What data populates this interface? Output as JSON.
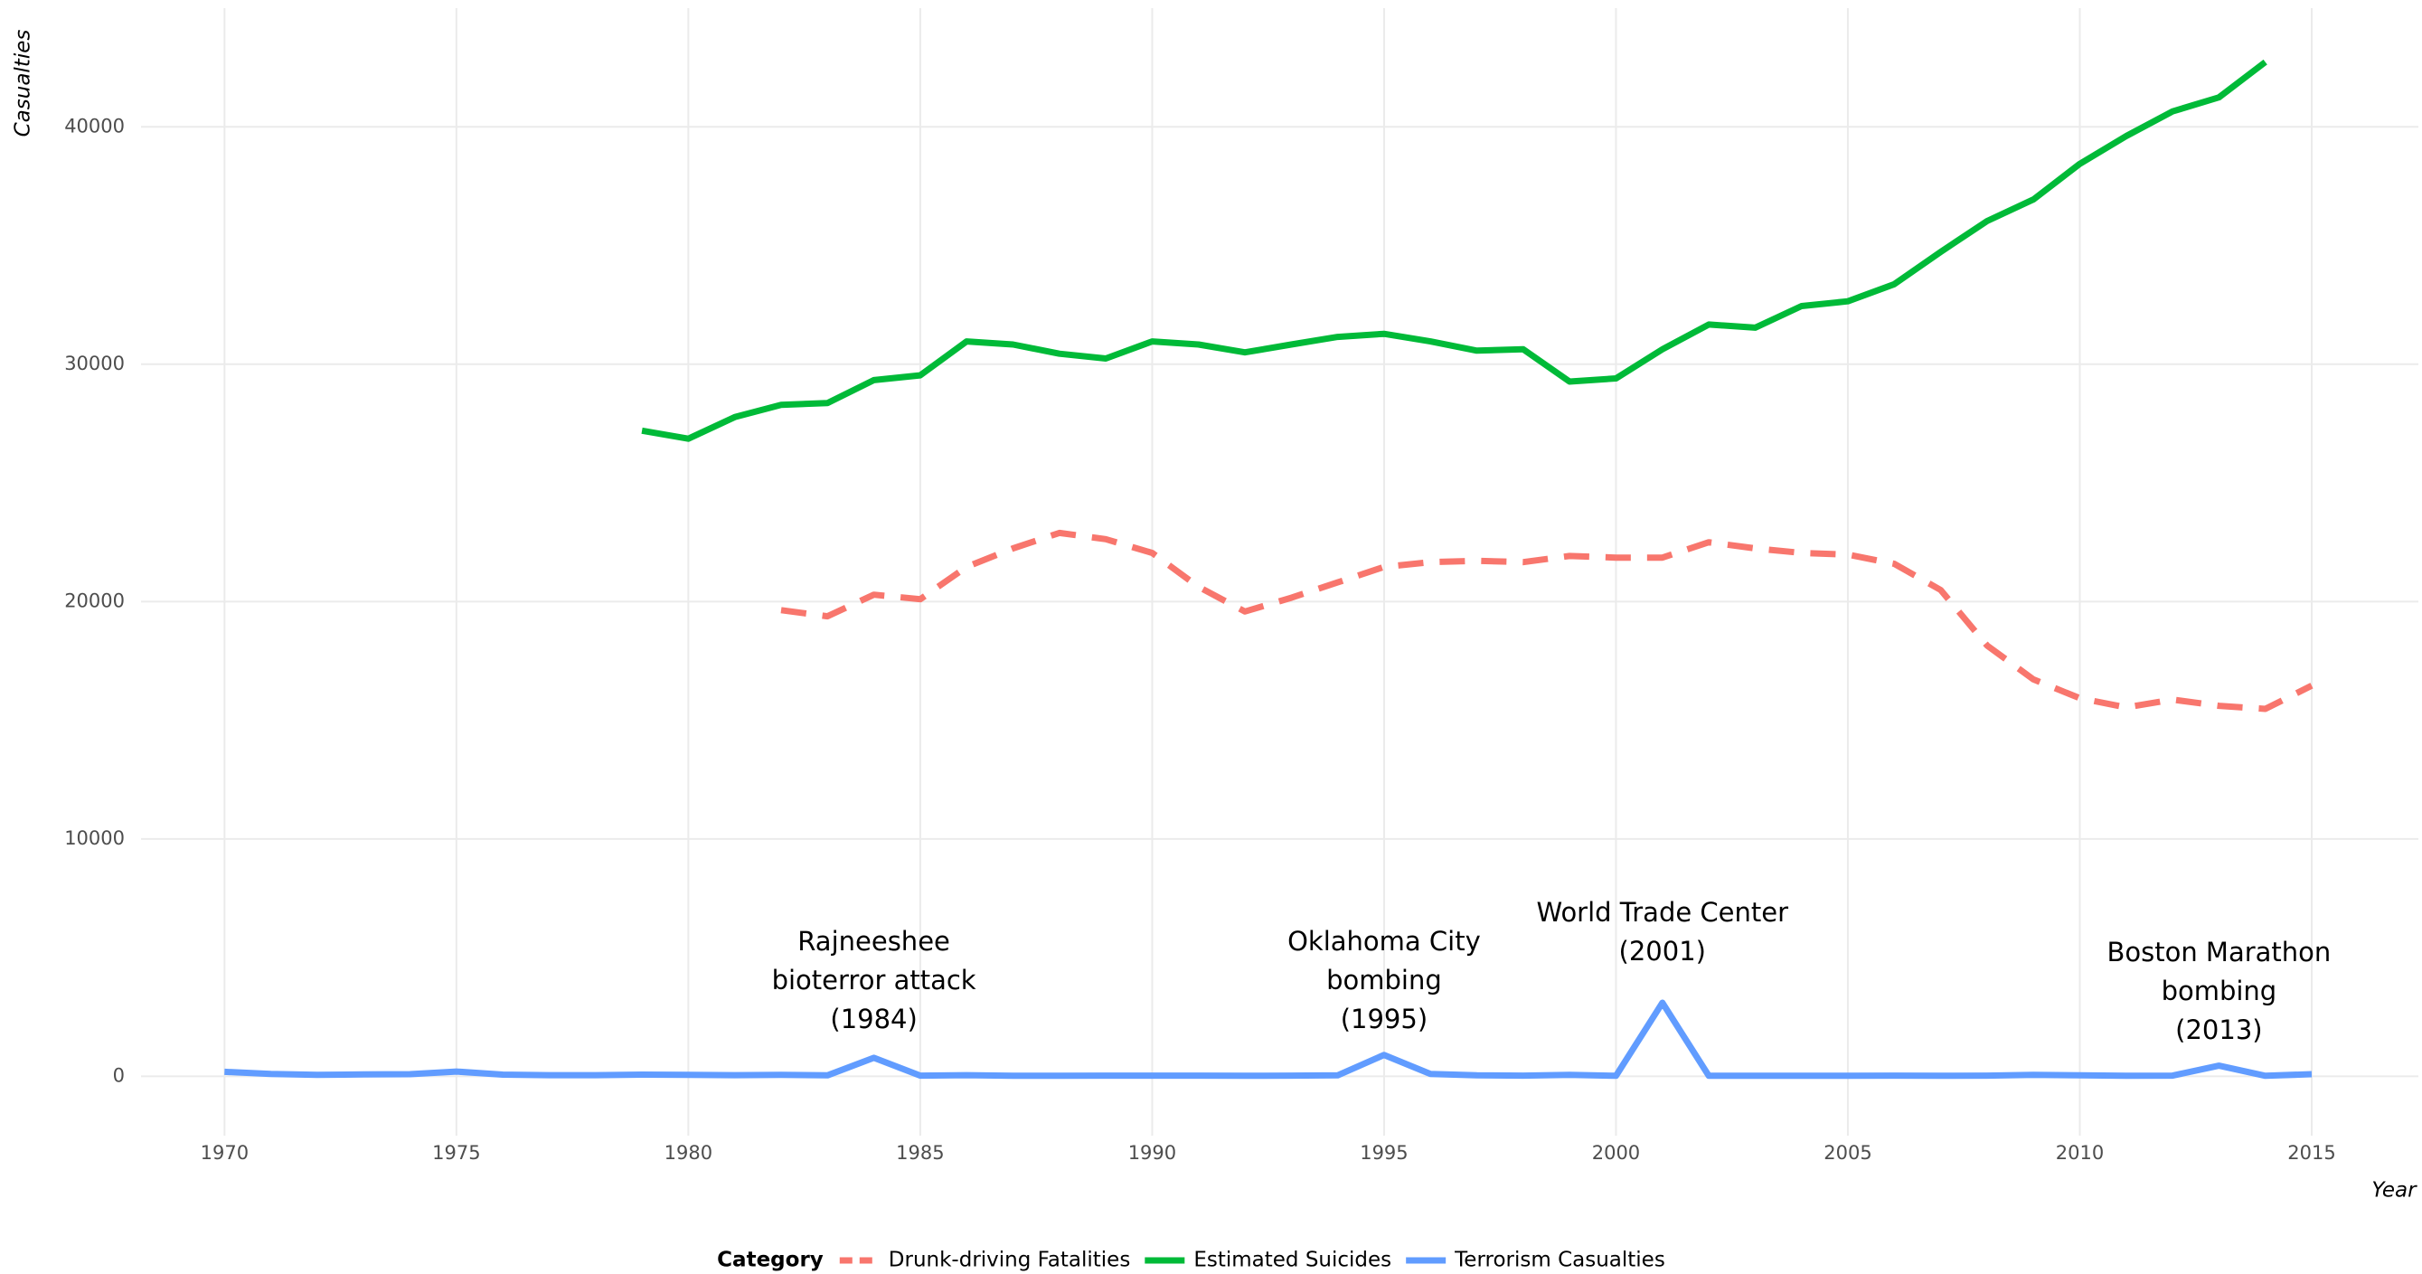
{
  "chart_data": {
    "type": "line",
    "x_label": "Year",
    "y_label": "Casualties",
    "xlim": [
      1968.2,
      2017.3
    ],
    "ylim": [
      -2500,
      45000
    ],
    "xticks": [
      1970,
      1975,
      1980,
      1985,
      1990,
      1995,
      2000,
      2005,
      2010,
      2015
    ],
    "yticks": [
      0,
      10000,
      20000,
      30000,
      40000
    ],
    "grid": true,
    "legend_title": "Category",
    "legend_position": "bottom",
    "series": [
      {
        "name": "Drunk-driving Fatalities",
        "color": "#f8766d",
        "dash": true,
        "x": [
          1982,
          1983,
          1984,
          1985,
          1986,
          1987,
          1988,
          1989,
          1990,
          1991,
          1992,
          1993,
          1994,
          1995,
          1996,
          1997,
          1998,
          1999,
          2000,
          2001,
          2002,
          2003,
          2004,
          2005,
          2006,
          2007,
          2008,
          2009,
          2010,
          2011,
          2012,
          2013,
          2014,
          2015
        ],
        "values": [
          19640,
          19380,
          20290,
          20100,
          21460,
          22240,
          22890,
          22630,
          22050,
          20620,
          19580,
          20160,
          20810,
          21460,
          21660,
          21720,
          21660,
          21920,
          21850,
          21850,
          22500,
          22240,
          22050,
          21980,
          21590,
          20490,
          18150,
          16720,
          15930,
          15540,
          15870,
          15610,
          15480,
          16460
        ]
      },
      {
        "name": "Estimated Suicides",
        "color": "#00ba38",
        "dash": false,
        "x": [
          1979,
          1980,
          1981,
          1982,
          1983,
          1984,
          1985,
          1986,
          1987,
          1988,
          1989,
          1990,
          1991,
          1992,
          1993,
          1994,
          1995,
          1996,
          1997,
          1998,
          1999,
          2000,
          2001,
          2002,
          2003,
          2004,
          2005,
          2006,
          2007,
          2008,
          2009,
          2010,
          2011,
          2012,
          2013,
          2014
        ],
        "values": [
          27200,
          26860,
          27770,
          28290,
          28360,
          29330,
          29530,
          30960,
          30830,
          30440,
          30240,
          30960,
          30830,
          30500,
          30830,
          31150,
          31280,
          30960,
          30570,
          30630,
          29270,
          29400,
          30630,
          31670,
          31540,
          32450,
          32650,
          33370,
          34730,
          36030,
          36940,
          38440,
          39610,
          40650,
          41240,
          42730
        ]
      },
      {
        "name": "Terrorism Casualties",
        "color": "#619cff",
        "dash": false,
        "x": [
          1970,
          1971,
          1972,
          1973,
          1974,
          1975,
          1976,
          1977,
          1978,
          1979,
          1980,
          1981,
          1982,
          1983,
          1984,
          1985,
          1986,
          1987,
          1988,
          1989,
          1990,
          1991,
          1992,
          1993,
          1994,
          1995,
          1996,
          1997,
          1998,
          1999,
          2000,
          2001,
          2002,
          2003,
          2004,
          2005,
          2006,
          2007,
          2008,
          2009,
          2010,
          2011,
          2012,
          2013,
          2014,
          2015
        ],
        "values": [
          190,
          100,
          60,
          80,
          90,
          200,
          70,
          50,
          50,
          70,
          60,
          50,
          60,
          40,
          780,
          30,
          50,
          20,
          20,
          30,
          30,
          30,
          20,
          30,
          40,
          900,
          100,
          40,
          30,
          60,
          20,
          3100,
          20,
          20,
          20,
          20,
          30,
          20,
          30,
          60,
          40,
          20,
          30,
          450,
          20,
          90
        ]
      }
    ],
    "annotations": [
      {
        "x": 1984,
        "y": 2340,
        "lines": [
          "Rajneeshee",
          "bioterror attack",
          "(1984)"
        ]
      },
      {
        "x": 1995,
        "y": 2340,
        "lines": [
          "Oklahoma City",
          "bombing",
          "(1995)"
        ]
      },
      {
        "x": 2001,
        "y": 5200,
        "lines": [
          "World Trade Center",
          "(2001)"
        ]
      },
      {
        "x": 2013,
        "y": 1890,
        "lines": [
          "Boston Marathon",
          "bombing",
          "(2013)"
        ]
      }
    ]
  }
}
